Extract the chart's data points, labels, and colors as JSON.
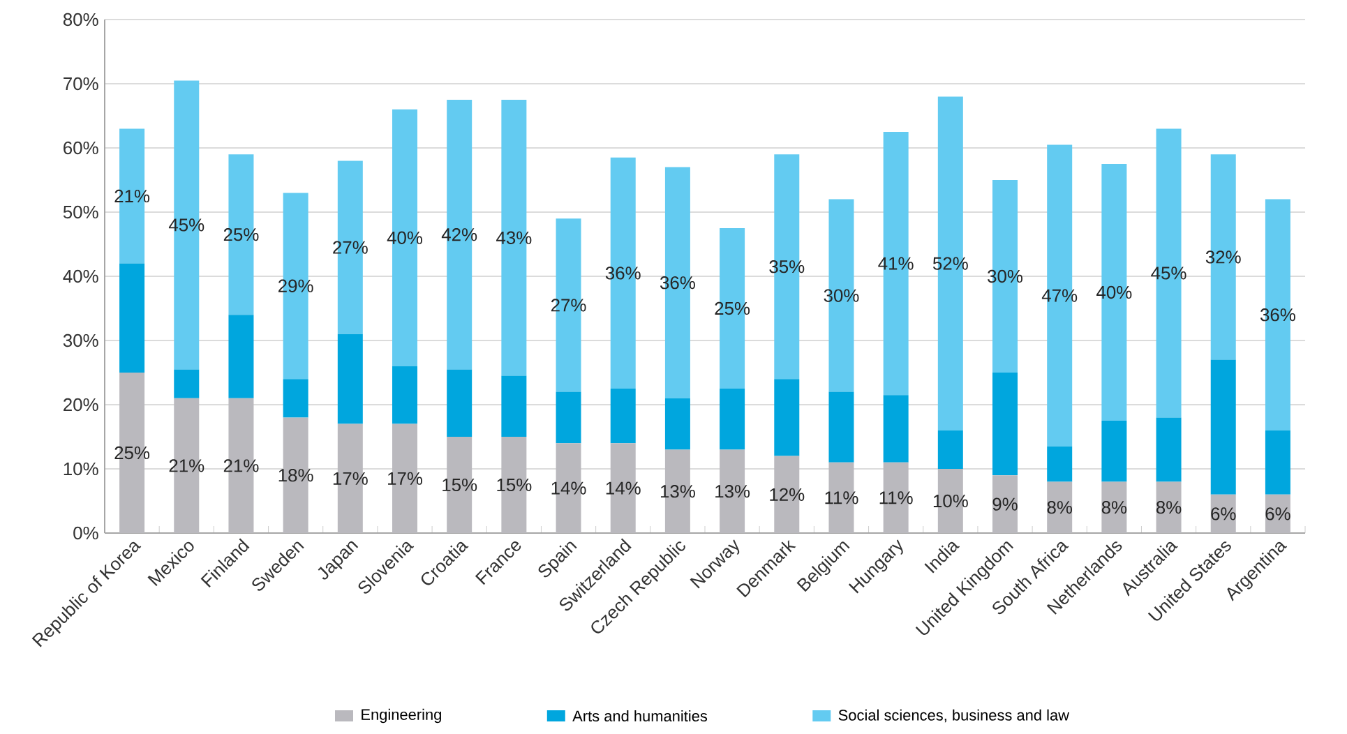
{
  "chart_data": {
    "type": "bar",
    "stacked": true,
    "categories": [
      "Republic of Korea",
      "Mexico",
      "Finland",
      "Sweden",
      "Japan",
      "Slovenia",
      "Croatia",
      "France",
      "Spain",
      "Switzerland",
      "Czech Republic",
      "Norway",
      "Denmark",
      "Belgium",
      "Hungary",
      "India",
      "United Kingdom",
      "South Africa",
      "Netherlands",
      "Australia",
      "United States",
      "Argentina"
    ],
    "series": [
      {
        "name": "Engineering",
        "color": "#bab9be",
        "values": [
          25,
          21,
          21,
          18,
          17,
          17,
          15,
          15,
          14,
          14,
          13,
          13,
          12,
          11,
          11,
          10,
          9,
          8,
          8,
          8,
          6,
          6
        ],
        "value_labels": [
          "25%",
          "21%",
          "21%",
          "18%",
          "17%",
          "17%",
          "15%",
          "15%",
          "14%",
          "14%",
          "13%",
          "13%",
          "12%",
          "11%",
          "11%",
          "10%",
          "9%",
          "8%",
          "8%",
          "8%",
          "6%",
          "6%"
        ]
      },
      {
        "name": "Arts and humanities",
        "color": "#00a6de",
        "values": [
          17,
          4.5,
          13,
          6,
          14,
          9,
          10.5,
          9.5,
          8,
          8.5,
          8,
          9.5,
          12,
          11,
          10.5,
          6,
          16,
          5.5,
          9.5,
          10,
          21,
          10
        ]
      },
      {
        "name": "Social sciences, business and law",
        "color": "#63cbf1",
        "values": [
          21,
          45,
          25,
          29,
          27,
          40,
          42,
          43,
          27,
          36,
          36,
          25,
          35,
          30,
          41,
          52,
          30,
          47,
          40,
          45,
          32,
          36
        ],
        "value_labels": [
          "21%",
          "45%",
          "25%",
          "29%",
          "27%",
          "40%",
          "42%",
          "43%",
          "27%",
          "36%",
          "36%",
          "25%",
          "35%",
          "30%",
          "41%",
          "52%",
          "30%",
          "47%",
          "40%",
          "45%",
          "32%",
          "36%"
        ]
      }
    ],
    "ylim": [
      0,
      80
    ],
    "yticks": [
      {
        "value": 0,
        "label": "0%"
      },
      {
        "value": 10,
        "label": "10%"
      },
      {
        "value": 20,
        "label": "20%"
      },
      {
        "value": 30,
        "label": "30%"
      },
      {
        "value": 40,
        "label": "40%"
      },
      {
        "value": 50,
        "label": "50%"
      },
      {
        "value": 60,
        "label": "60%"
      },
      {
        "value": 70,
        "label": "70%"
      },
      {
        "value": 80,
        "label": "80%"
      }
    ],
    "grid": "y",
    "legend": "bottom"
  }
}
